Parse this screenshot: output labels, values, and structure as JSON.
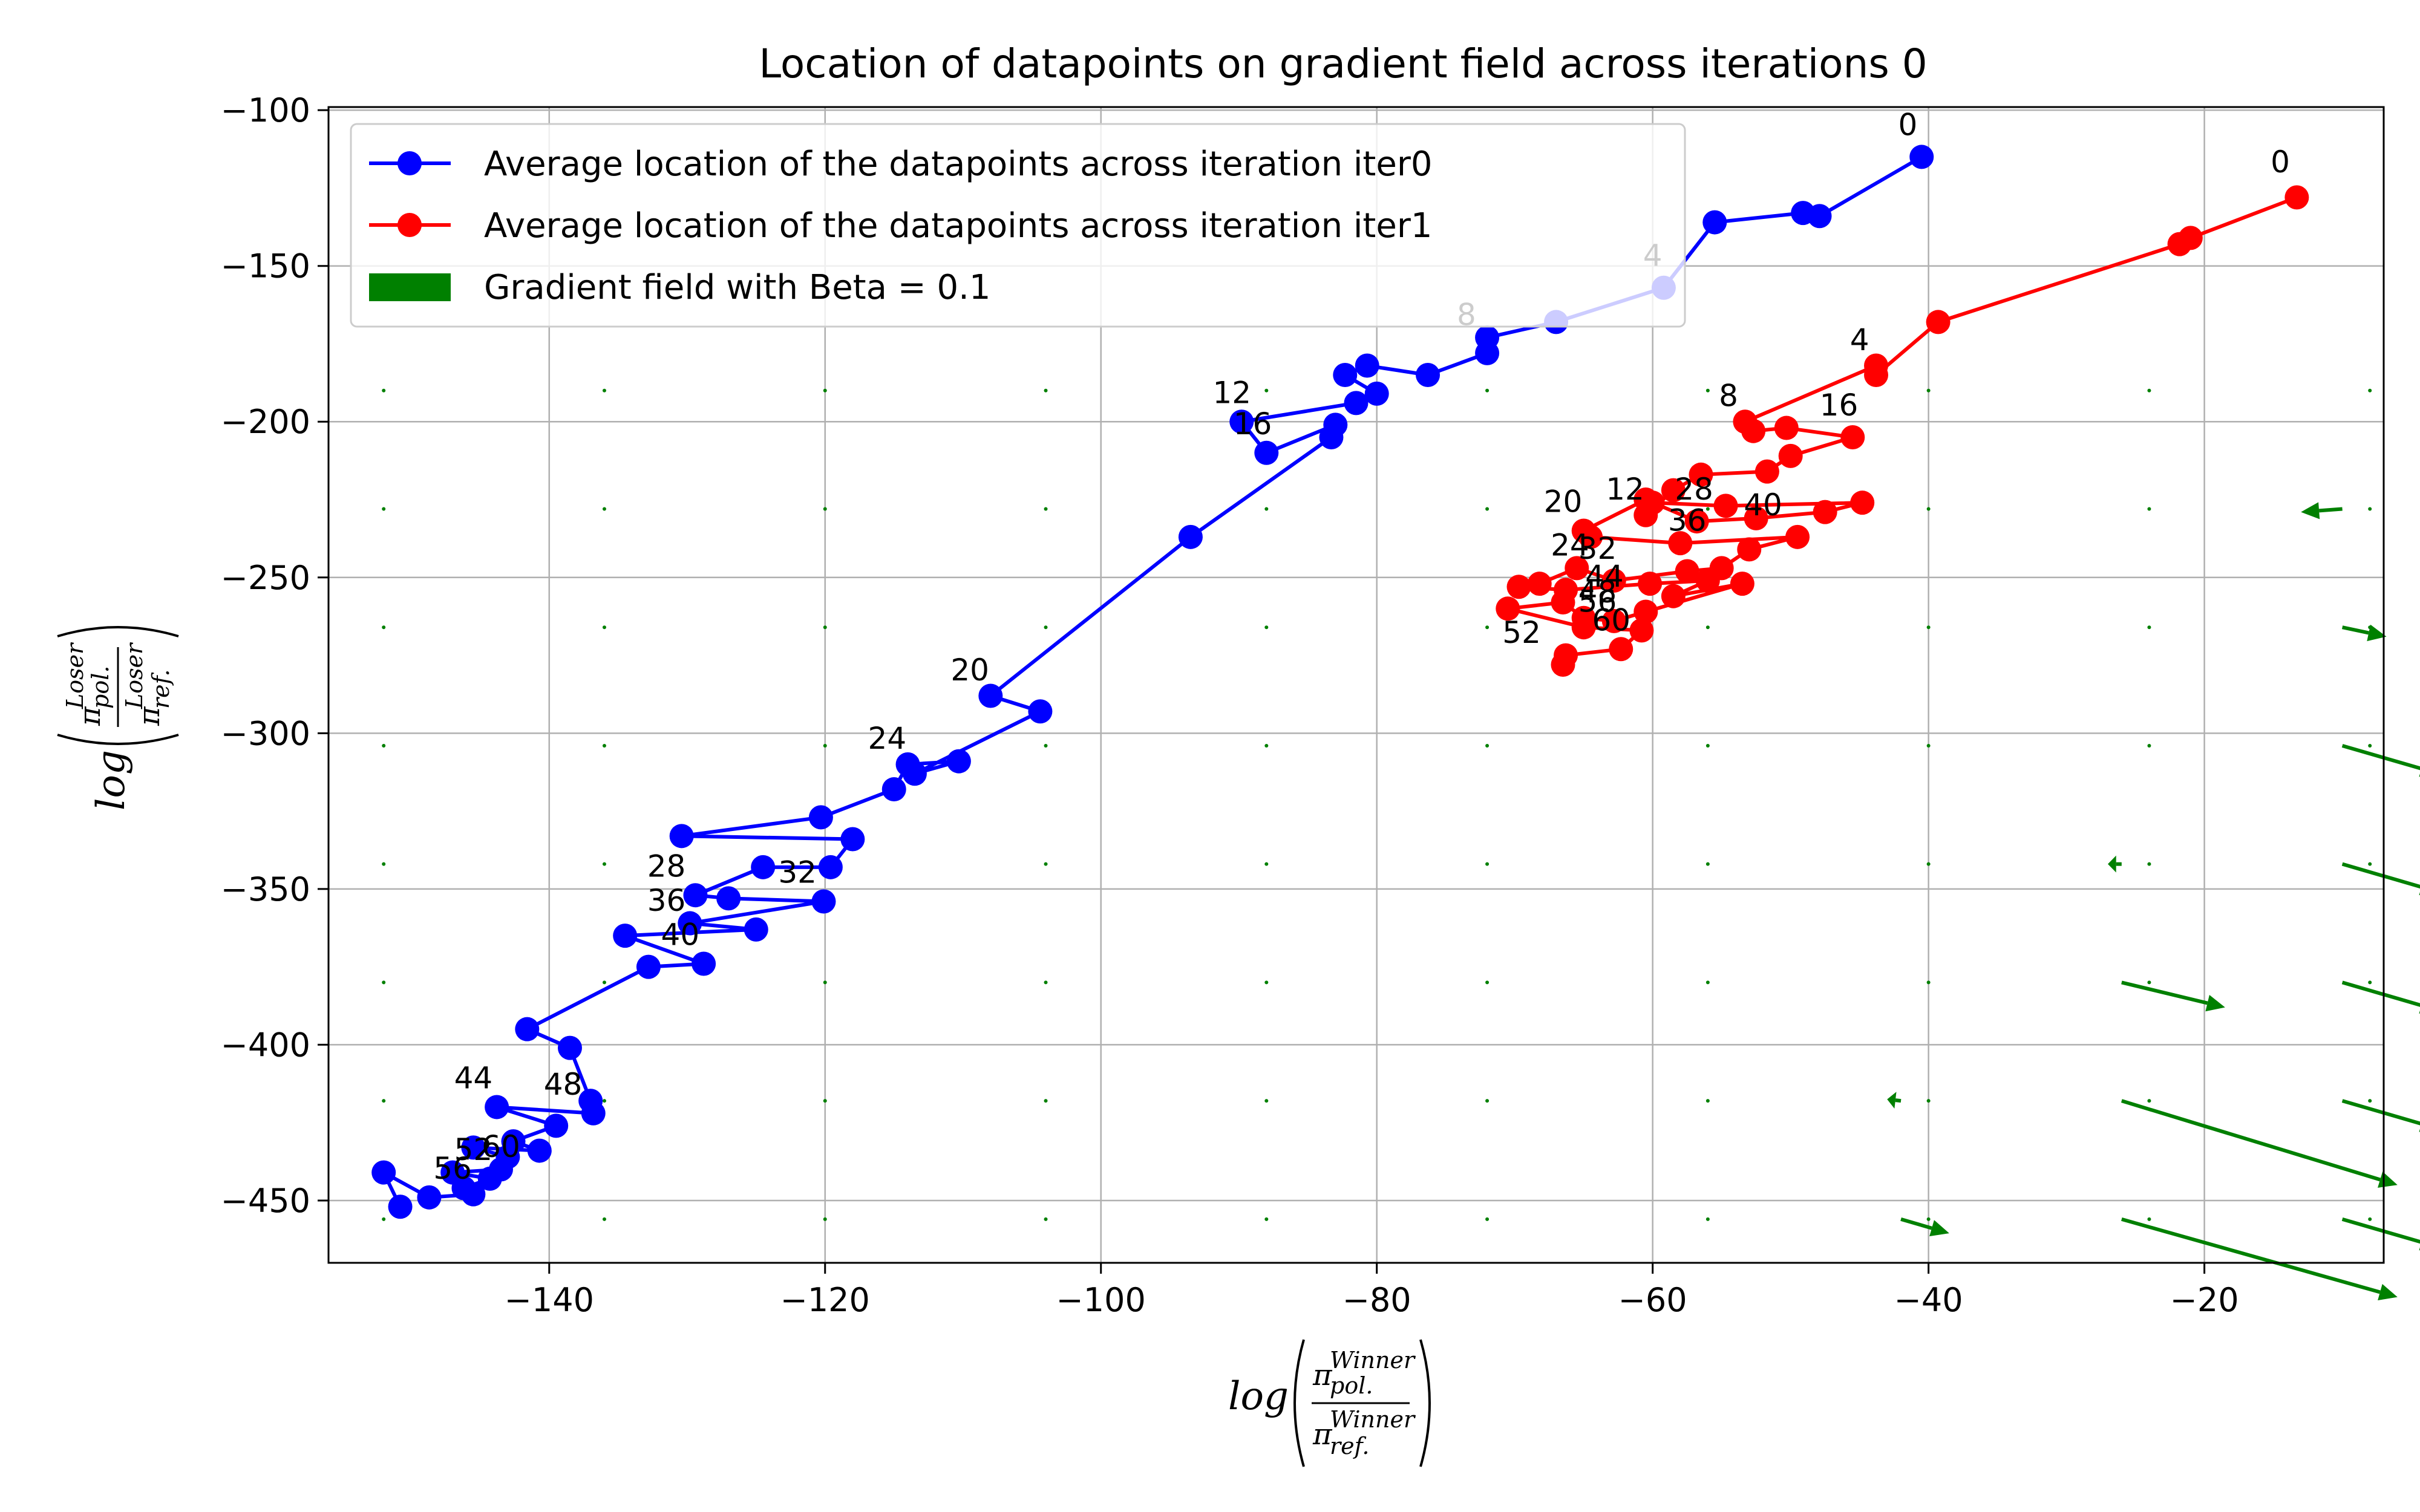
{
  "chart_data": {
    "type": "line",
    "title": "Location of datapoints on gradient field across iterations 0",
    "xlabel": {
      "prefix": "log",
      "num_sym": "π",
      "num_sup": "Winner",
      "num_sub": "pol.",
      "den_sym": "π",
      "den_sup": "Winner",
      "den_sub": "ref."
    },
    "ylabel": {
      "prefix": "log",
      "num_sym": "π",
      "num_sup": "Loser",
      "num_sub": "pol.",
      "den_sym": "π",
      "den_sup": "Loser",
      "den_sub": "ref."
    },
    "xlim": [
      -156,
      -7
    ],
    "ylim": [
      -470,
      -99
    ],
    "xticks": [
      -140,
      -120,
      -100,
      -80,
      -60,
      -40,
      -20
    ],
    "yticks": [
      -100,
      -150,
      -200,
      -250,
      -300,
      -350,
      -400,
      -450
    ],
    "xtick_labels": [
      "−140",
      "−120",
      "−100",
      "−80",
      "−60",
      "−40",
      "−20"
    ],
    "ytick_labels": [
      "−100",
      "−150",
      "−200",
      "−250",
      "−300",
      "−350",
      "−400",
      "−450"
    ],
    "grid": true,
    "legend_position": "top-left",
    "series": [
      {
        "name": "Average location of the datapoints across iteration iter0",
        "color": "#0000ff",
        "points": [
          [
            -40.5,
            -115
          ],
          [
            -47.9,
            -134
          ],
          [
            -49.1,
            -133
          ],
          [
            -55.5,
            -136
          ],
          [
            -59.2,
            -157
          ],
          [
            -67.0,
            -168
          ],
          [
            -72.0,
            -173
          ],
          [
            -72.0,
            -178
          ],
          [
            -76.3,
            -185
          ],
          [
            -80.7,
            -182
          ],
          [
            -82.3,
            -185
          ],
          [
            -80.0,
            -191
          ],
          [
            -81.5,
            -194
          ],
          [
            -89.8,
            -200
          ],
          [
            -88.0,
            -210
          ],
          [
            -83.0,
            -201
          ],
          [
            -83.3,
            -205
          ],
          [
            -93.5,
            -237
          ],
          [
            -108.0,
            -288
          ],
          [
            -104.4,
            -293
          ],
          [
            -113.5,
            -313
          ],
          [
            -110.3,
            -309
          ],
          [
            -114.0,
            -310
          ],
          [
            -115.0,
            -318
          ],
          [
            -120.3,
            -327
          ],
          [
            -130.4,
            -333
          ],
          [
            -118.0,
            -334
          ],
          [
            -119.6,
            -343
          ],
          [
            -124.5,
            -343
          ],
          [
            -129.4,
            -352
          ],
          [
            -127.0,
            -353
          ],
          [
            -120.1,
            -354
          ],
          [
            -129.8,
            -361
          ],
          [
            -125.0,
            -363
          ],
          [
            -134.5,
            -365
          ],
          [
            -128.8,
            -374
          ],
          [
            -132.8,
            -375
          ],
          [
            -141.6,
            -395
          ],
          [
            -138.5,
            -401
          ],
          [
            -137.0,
            -418
          ],
          [
            -136.8,
            -422
          ],
          [
            -143.8,
            -420
          ],
          [
            -139.5,
            -426
          ],
          [
            -142.6,
            -431
          ],
          [
            -140.7,
            -434
          ],
          [
            -145.5,
            -433
          ],
          [
            -143.0,
            -436
          ],
          [
            -143.5,
            -440
          ],
          [
            -147.0,
            -441
          ],
          [
            -144.3,
            -443
          ],
          [
            -146.2,
            -446
          ],
          [
            -145.5,
            -448
          ],
          [
            -148.7,
            -449
          ],
          [
            -152.0,
            -441
          ],
          [
            -150.8,
            -452
          ]
        ],
        "annotations": [
          {
            "label": "0",
            "x": -41.5,
            "y": -108
          },
          {
            "label": "4",
            "x": -60.0,
            "y": -150
          },
          {
            "label": "8",
            "x": -73.5,
            "y": -169
          },
          {
            "label": "12",
            "x": -90.5,
            "y": -194
          },
          {
            "label": "16",
            "x": -89.0,
            "y": -204
          },
          {
            "label": "20",
            "x": -109.5,
            "y": -283
          },
          {
            "label": "24",
            "x": -115.5,
            "y": -305
          },
          {
            "label": "28",
            "x": -131.5,
            "y": -346
          },
          {
            "label": "32",
            "x": -122.0,
            "y": -348
          },
          {
            "label": "36",
            "x": -131.5,
            "y": -357
          },
          {
            "label": "40",
            "x": -130.5,
            "y": -368
          },
          {
            "label": "44",
            "x": -145.5,
            "y": -414
          },
          {
            "label": "48",
            "x": -139.0,
            "y": -416
          },
          {
            "label": "52",
            "x": -145.5,
            "y": -437
          },
          {
            "label": "56",
            "x": -147.0,
            "y": -443
          },
          {
            "label": "60",
            "x": -143.5,
            "y": -436
          }
        ]
      },
      {
        "name": "Average location of the datapoints across iteration iter1",
        "color": "#ff0000",
        "points": [
          [
            -13.3,
            -128
          ],
          [
            -21.0,
            -141
          ],
          [
            -21.8,
            -143
          ],
          [
            -39.3,
            -168
          ],
          [
            -43.8,
            -185
          ],
          [
            -43.8,
            -182
          ],
          [
            -53.3,
            -200
          ],
          [
            -52.7,
            -203
          ],
          [
            -50.3,
            -202
          ],
          [
            -45.5,
            -205
          ],
          [
            -50.0,
            -211
          ],
          [
            -51.7,
            -216
          ],
          [
            -56.5,
            -217
          ],
          [
            -58.5,
            -222
          ],
          [
            -60.5,
            -230
          ],
          [
            -60.0,
            -226
          ],
          [
            -54.7,
            -227
          ],
          [
            -44.8,
            -226
          ],
          [
            -47.5,
            -229
          ],
          [
            -52.5,
            -231
          ],
          [
            -56.8,
            -232
          ],
          [
            -60.5,
            -225
          ],
          [
            -65.0,
            -235
          ],
          [
            -64.5,
            -237
          ],
          [
            -58.0,
            -239
          ],
          [
            -49.5,
            -237
          ],
          [
            -53.0,
            -241
          ],
          [
            -55.0,
            -247
          ],
          [
            -57.5,
            -248
          ],
          [
            -62.8,
            -251
          ],
          [
            -65.5,
            -247
          ],
          [
            -68.2,
            -252
          ],
          [
            -69.7,
            -253
          ],
          [
            -66.3,
            -254
          ],
          [
            -60.2,
            -252
          ],
          [
            -56.0,
            -251
          ],
          [
            -58.5,
            -256
          ],
          [
            -53.5,
            -252
          ],
          [
            -60.5,
            -261
          ],
          [
            -62.8,
            -264
          ],
          [
            -65.0,
            -263
          ],
          [
            -66.5,
            -258
          ],
          [
            -70.5,
            -260
          ],
          [
            -65.0,
            -266
          ],
          [
            -60.8,
            -267
          ],
          [
            -62.3,
            -273
          ],
          [
            -66.3,
            -275
          ],
          [
            -66.5,
            -278
          ]
        ],
        "annotations": [
          {
            "label": "0",
            "x": -14.5,
            "y": -120
          },
          {
            "label": "4",
            "x": -45.0,
            "y": -177
          },
          {
            "label": "8",
            "x": -54.5,
            "y": -195
          },
          {
            "label": "12",
            "x": -62.0,
            "y": -225
          },
          {
            "label": "16",
            "x": -46.5,
            "y": -198
          },
          {
            "label": "20",
            "x": -66.5,
            "y": -229
          },
          {
            "label": "24",
            "x": -66.0,
            "y": -243
          },
          {
            "label": "28",
            "x": -57.0,
            "y": -225
          },
          {
            "label": "32",
            "x": -64.0,
            "y": -244
          },
          {
            "label": "36",
            "x": -57.5,
            "y": -235
          },
          {
            "label": "40",
            "x": -52.0,
            "y": -230
          },
          {
            "label": "44",
            "x": -63.5,
            "y": -253
          },
          {
            "label": "48",
            "x": -64.0,
            "y": -258
          },
          {
            "label": "52",
            "x": -69.5,
            "y": -271
          },
          {
            "label": "56",
            "x": -64.0,
            "y": -261
          },
          {
            "label": "60",
            "x": -63.0,
            "y": -267
          }
        ]
      }
    ],
    "gradient_field": {
      "name": "Gradient field with Beta = 0.1",
      "color": "#008000",
      "grid_x": [
        -152,
        -136,
        -120,
        -104,
        -88,
        -72,
        -56,
        -40,
        -24,
        -8
      ],
      "grid_y": [
        -190,
        -228,
        -266,
        -304,
        -342,
        -380,
        -418,
        -456
      ],
      "arrows": [
        {
          "x": -10,
          "y": -228,
          "u": -3,
          "v": -1
        },
        {
          "x": -10,
          "y": -266,
          "u": 3.2,
          "v": -3
        },
        {
          "x": -10,
          "y": -304,
          "u": 7,
          "v": -9
        },
        {
          "x": -10,
          "y": -342,
          "u": 7,
          "v": -9
        },
        {
          "x": -10,
          "y": -380,
          "u": 7,
          "v": -9
        },
        {
          "x": -10,
          "y": -418,
          "u": 7,
          "v": -9
        },
        {
          "x": -10,
          "y": -456,
          "u": 7,
          "v": -9
        },
        {
          "x": -26,
          "y": -342,
          "u": -1,
          "v": 0
        },
        {
          "x": -26,
          "y": -380,
          "u": 7.5,
          "v": -8
        },
        {
          "x": -26,
          "y": -418,
          "u": 20,
          "v": -27
        },
        {
          "x": -26,
          "y": -456,
          "u": 20,
          "v": -25
        },
        {
          "x": -42,
          "y": -418,
          "u": -1,
          "v": 0.5
        },
        {
          "x": -42,
          "y": -456,
          "u": 3.5,
          "v": -4.5
        }
      ]
    }
  }
}
